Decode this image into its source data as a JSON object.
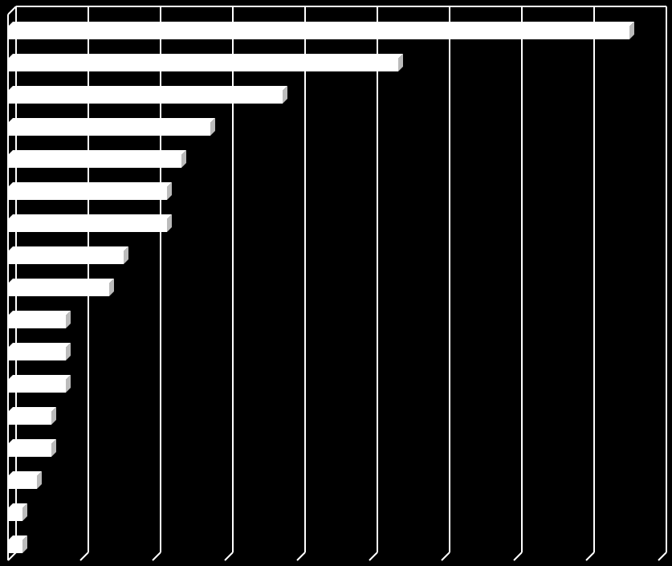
{
  "chart_data": {
    "type": "hbar",
    "categories": [
      null,
      null,
      null,
      null,
      null,
      null,
      null,
      null,
      null,
      null,
      null,
      null,
      null,
      null,
      null,
      null,
      null
    ],
    "values": [
      43,
      27,
      19,
      14,
      12,
      11,
      11,
      8,
      7,
      4,
      4,
      4,
      3,
      3,
      2,
      1,
      1
    ],
    "color": "#ffffff",
    "xlim": [
      0,
      45
    ],
    "xticks": [
      0,
      5,
      10,
      15,
      20,
      25,
      30,
      35,
      40,
      45
    ],
    "grid": true
  }
}
